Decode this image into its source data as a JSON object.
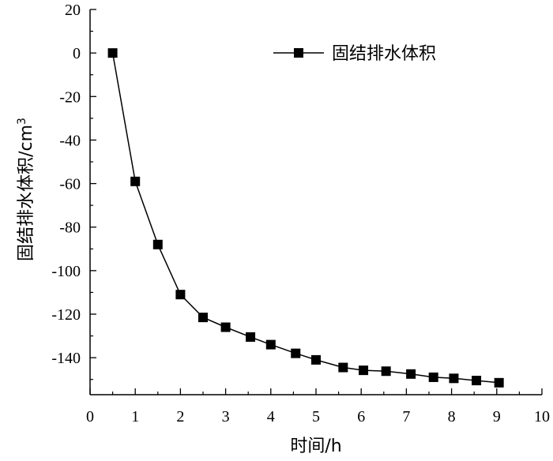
{
  "chart_data": {
    "type": "line",
    "title": "",
    "xlabel": "时间/h",
    "ylabel_main": "固结排水体积/cm",
    "ylabel_sup": "3",
    "xlim": [
      0,
      10
    ],
    "ylim": [
      -157,
      20
    ],
    "x_ticks": [
      0,
      1,
      2,
      3,
      4,
      5,
      6,
      7,
      8,
      9,
      10
    ],
    "y_ticks": [
      20,
      0,
      -20,
      -40,
      -60,
      -80,
      -100,
      -120,
      -140
    ],
    "grid": false,
    "legend_position": "top-right",
    "marker": "square",
    "series": [
      {
        "name": "固结排水体积",
        "color": "#000000",
        "x": [
          0.5,
          1.0,
          1.5,
          2.0,
          2.5,
          3.0,
          3.55,
          4.0,
          4.55,
          5.0,
          5.6,
          6.05,
          6.55,
          7.1,
          7.6,
          8.05,
          8.55,
          9.05
        ],
        "y": [
          0,
          -59,
          -88,
          -111,
          -121.5,
          -126,
          -130.5,
          -134,
          -138,
          -141,
          -144.5,
          -145.8,
          -146.2,
          -147.5,
          -149,
          -149.5,
          -150.5,
          -151.5
        ]
      }
    ]
  }
}
